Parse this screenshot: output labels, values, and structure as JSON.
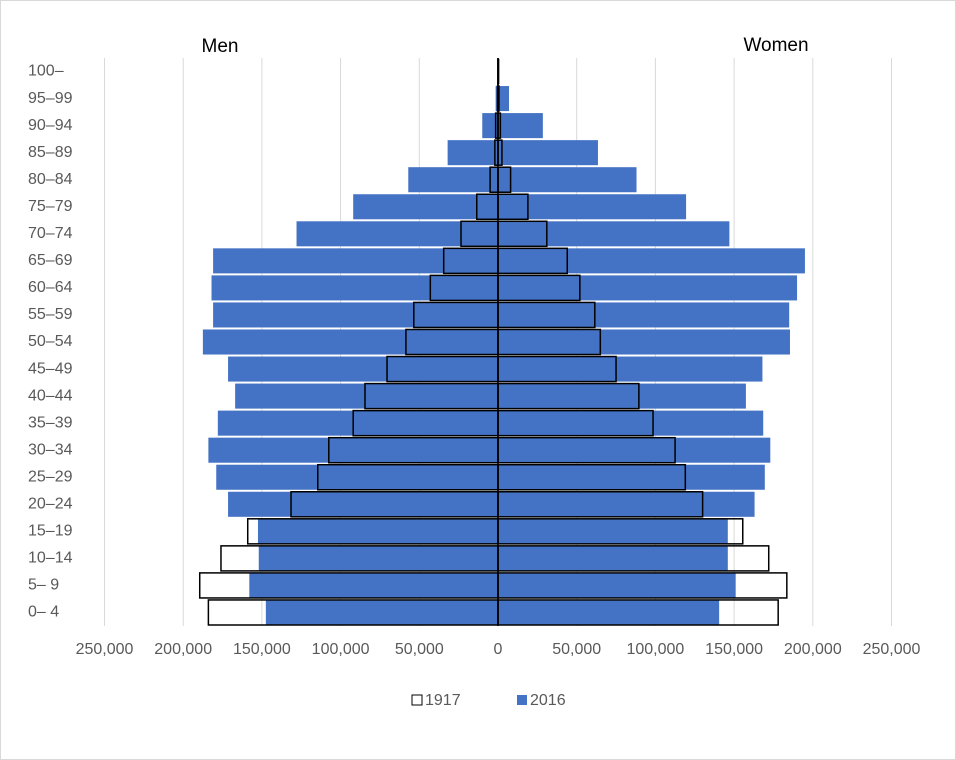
{
  "chart_data": {
    "type": "pyramid",
    "left_label": "Men",
    "right_label": "Women",
    "categories": [
      "100–",
      "95–99",
      "90–94",
      "85–89",
      "80–84",
      "75–79",
      "70–74",
      "65–69",
      "60–64",
      "55–59",
      "50–54",
      "45–49",
      "40–44",
      "35–39",
      "30–34",
      "25–29",
      "20–24",
      "15–19",
      "10–14",
      "5– 9",
      "0– 4"
    ],
    "series": [
      {
        "name": "2016",
        "color": "#4472c4",
        "fill": true,
        "men": [
          300,
          1500,
          10000,
          32000,
          57000,
          92000,
          128000,
          181000,
          182000,
          181000,
          187500,
          171500,
          167000,
          178000,
          184000,
          179000,
          171500,
          152500,
          152000,
          158000,
          147500
        ],
        "women": [
          1000,
          7000,
          28500,
          63500,
          88000,
          119500,
          147000,
          195000,
          190000,
          185000,
          185500,
          168000,
          157500,
          168500,
          173000,
          169500,
          163000,
          146000,
          146000,
          151000,
          140500
        ]
      },
      {
        "name": "1917",
        "color": "#000000",
        "fill": false,
        "men": [
          100,
          300,
          1500,
          2000,
          5000,
          13500,
          23500,
          34500,
          43000,
          53500,
          58500,
          70500,
          84500,
          92000,
          107500,
          114500,
          131500,
          159000,
          176000,
          189500,
          184000
        ],
        "women": [
          200,
          600,
          1500,
          2500,
          8000,
          19000,
          31000,
          44000,
          52000,
          61500,
          65000,
          75000,
          89500,
          98500,
          112500,
          119000,
          130000,
          155500,
          172000,
          183500,
          178000
        ]
      }
    ],
    "xlim": [
      0,
      250000
    ],
    "xticks": [
      0,
      {
        "value": 50000,
        "label": "50,000"
      },
      {
        "value": 100000,
        "label": "100,000"
      },
      {
        "value": 150000,
        "label": "150,000"
      },
      {
        "value": 200000,
        "label": "200,000"
      },
      {
        "value": 250000,
        "label": "250,000"
      }
    ],
    "grid": true,
    "legend": "bottom"
  }
}
